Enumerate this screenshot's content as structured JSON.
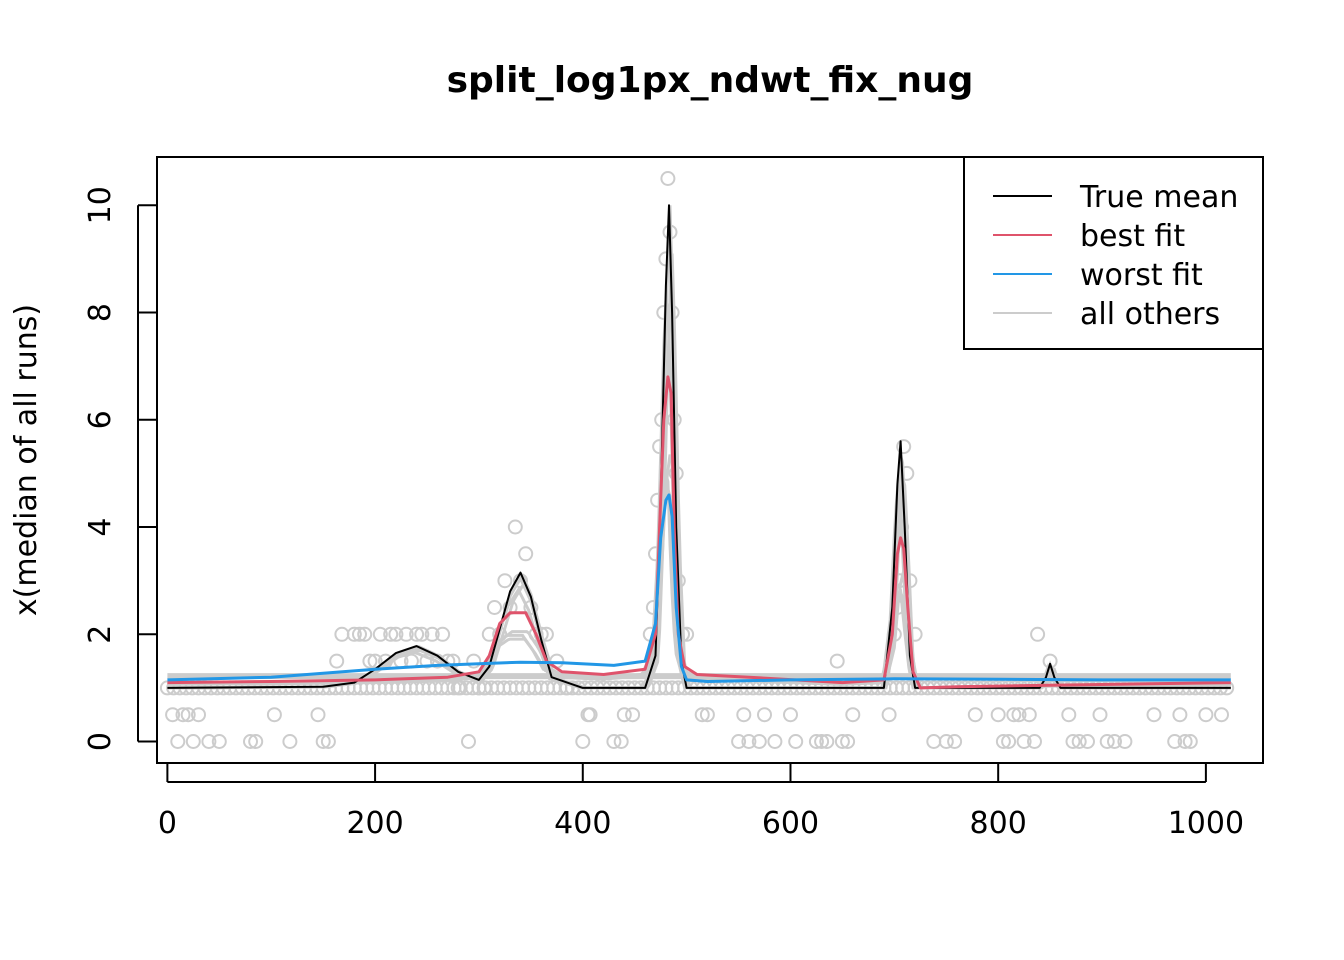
{
  "chart_data": {
    "type": "line",
    "title": "split_log1px_ndwt_fix_nug",
    "xlabel": "",
    "ylabel": "x(median of all runs)",
    "xlim": [
      -10,
      1055
    ],
    "ylim": [
      -0.4,
      10.9
    ],
    "x_ticks": [
      0,
      200,
      400,
      600,
      800,
      1000
    ],
    "y_ticks": [
      0,
      2,
      4,
      6,
      8,
      10
    ],
    "x_tick_labels": [
      "0",
      "200",
      "400",
      "600",
      "800",
      "1000"
    ],
    "y_tick_labels": [
      "0",
      "2",
      "4",
      "6",
      "8",
      "10"
    ],
    "grid": false,
    "legend": {
      "position": "top-right",
      "entries": [
        "True mean",
        "best fit",
        "worst fit",
        "all others"
      ]
    },
    "colors": {
      "true_mean": "#000000",
      "best_fit": "#DF536B",
      "worst_fit": "#2297E6",
      "all_others": "#CCCCCC",
      "points": "#CCCCCC"
    },
    "series": [
      {
        "name": "True mean",
        "color": "#000000",
        "x": [
          0,
          150,
          180,
          200,
          220,
          240,
          260,
          280,
          300,
          310,
          320,
          330,
          340,
          350,
          360,
          370,
          400,
          460,
          470,
          475,
          480,
          483,
          486,
          490,
          495,
          500,
          520,
          600,
          690,
          698,
          703,
          706,
          710,
          715,
          720,
          760,
          840,
          846,
          850,
          854,
          860,
          1024
        ],
        "y": [
          1.0,
          1.02,
          1.1,
          1.35,
          1.65,
          1.78,
          1.6,
          1.3,
          1.15,
          1.4,
          2.1,
          2.8,
          3.15,
          2.7,
          1.9,
          1.2,
          1.0,
          1.0,
          1.6,
          4.5,
          8.5,
          10.0,
          8.0,
          4.0,
          1.5,
          1.0,
          1.0,
          1.0,
          1.0,
          2.5,
          4.8,
          5.6,
          4.0,
          1.6,
          1.0,
          1.0,
          1.0,
          1.2,
          1.45,
          1.2,
          1.0,
          1.0
        ]
      },
      {
        "name": "best fit",
        "color": "#DF536B",
        "x": [
          0,
          100,
          200,
          270,
          300,
          310,
          320,
          330,
          345,
          355,
          365,
          380,
          420,
          460,
          470,
          474,
          478,
          482,
          485,
          488,
          492,
          498,
          510,
          560,
          650,
          690,
          698,
          703,
          706,
          709,
          713,
          718,
          725,
          760,
          850,
          1024
        ],
        "y": [
          1.1,
          1.12,
          1.15,
          1.2,
          1.3,
          1.6,
          2.2,
          2.4,
          2.4,
          2.0,
          1.5,
          1.3,
          1.25,
          1.35,
          2.0,
          4.0,
          6.0,
          6.8,
          6.5,
          4.0,
          2.0,
          1.4,
          1.25,
          1.2,
          1.1,
          1.15,
          2.0,
          3.5,
          3.8,
          3.6,
          2.5,
          1.3,
          1.0,
          1.02,
          1.05,
          1.1
        ]
      },
      {
        "name": "worst fit",
        "color": "#2297E6",
        "x": [
          0,
          100,
          200,
          260,
          300,
          340,
          380,
          430,
          460,
          470,
          475,
          480,
          483,
          486,
          490,
          495,
          500,
          520,
          600,
          700,
          800,
          900,
          1024
        ],
        "y": [
          1.15,
          1.2,
          1.35,
          1.42,
          1.45,
          1.48,
          1.47,
          1.42,
          1.5,
          2.2,
          3.8,
          4.5,
          4.6,
          4.2,
          2.5,
          1.4,
          1.15,
          1.12,
          1.15,
          1.17,
          1.16,
          1.15,
          1.15
        ]
      }
    ],
    "points": {
      "name": "observations",
      "color": "#CCCCCC",
      "x": [
        5,
        10,
        15,
        20,
        25,
        30,
        40,
        50,
        80,
        85,
        103,
        118,
        145,
        150,
        155,
        163,
        168,
        180,
        185,
        190,
        195,
        200,
        205,
        210,
        215,
        220,
        225,
        230,
        235,
        240,
        245,
        250,
        255,
        260,
        265,
        270,
        275,
        280,
        290,
        295,
        300,
        305,
        310,
        315,
        320,
        325,
        330,
        335,
        340,
        345,
        350,
        355,
        360,
        365,
        375,
        385,
        400,
        405,
        407,
        430,
        437,
        440,
        448,
        465,
        468,
        470,
        472,
        474,
        476,
        478,
        480,
        482,
        484,
        486,
        488,
        490,
        492,
        496,
        500,
        515,
        520,
        550,
        555,
        560,
        570,
        575,
        585,
        600,
        605,
        625,
        630,
        635,
        645,
        650,
        655,
        660,
        695,
        700,
        703,
        705,
        707,
        709,
        712,
        715,
        720,
        738,
        750,
        758,
        778,
        800,
        805,
        810,
        815,
        820,
        825,
        830,
        835,
        838,
        850,
        868,
        872,
        878,
        886,
        898,
        905,
        912,
        922,
        950,
        970,
        975,
        980,
        985,
        1000,
        1015
      ],
      "y": [
        0.5,
        0,
        0.5,
        0.5,
        0,
        0.5,
        0,
        0,
        0,
        0,
        0.5,
        0,
        0.5,
        0,
        0,
        1.5,
        2.0,
        2.0,
        2.0,
        2.0,
        1.5,
        1.5,
        2.0,
        1.5,
        2.0,
        2.0,
        1.5,
        2.0,
        1.5,
        2.0,
        2.0,
        1.5,
        2.0,
        1.5,
        2.0,
        1.5,
        1.5,
        1.0,
        0,
        1.5,
        1.0,
        1.0,
        2.0,
        2.5,
        2.0,
        3.0,
        2.5,
        4.0,
        3.0,
        3.5,
        2.5,
        2.0,
        2.0,
        2.0,
        1.5,
        1.0,
        0,
        0.5,
        0.5,
        0,
        0,
        0.5,
        0.5,
        2.0,
        2.5,
        3.5,
        4.5,
        5.5,
        6.0,
        8.0,
        9.0,
        10.5,
        9.5,
        8.0,
        6.0,
        5.0,
        3.0,
        2.0,
        2.0,
        0.5,
        0.5,
        0,
        0.5,
        0,
        0,
        0.5,
        0,
        0.5,
        0,
        0,
        0,
        0,
        1.5,
        0,
        0,
        0.5,
        0.5,
        2.0,
        2.5,
        3.0,
        4.0,
        5.5,
        5.0,
        3.0,
        2.0,
        0,
        0,
        0,
        0.5,
        0.5,
        0,
        0,
        0.5,
        0.5,
        0,
        0.5,
        0,
        2.0,
        1.5,
        0.5,
        0,
        0,
        0,
        0.5,
        0,
        0,
        0,
        0.5,
        0,
        0.5,
        0,
        0,
        0.5,
        0.5
      ]
    }
  }
}
